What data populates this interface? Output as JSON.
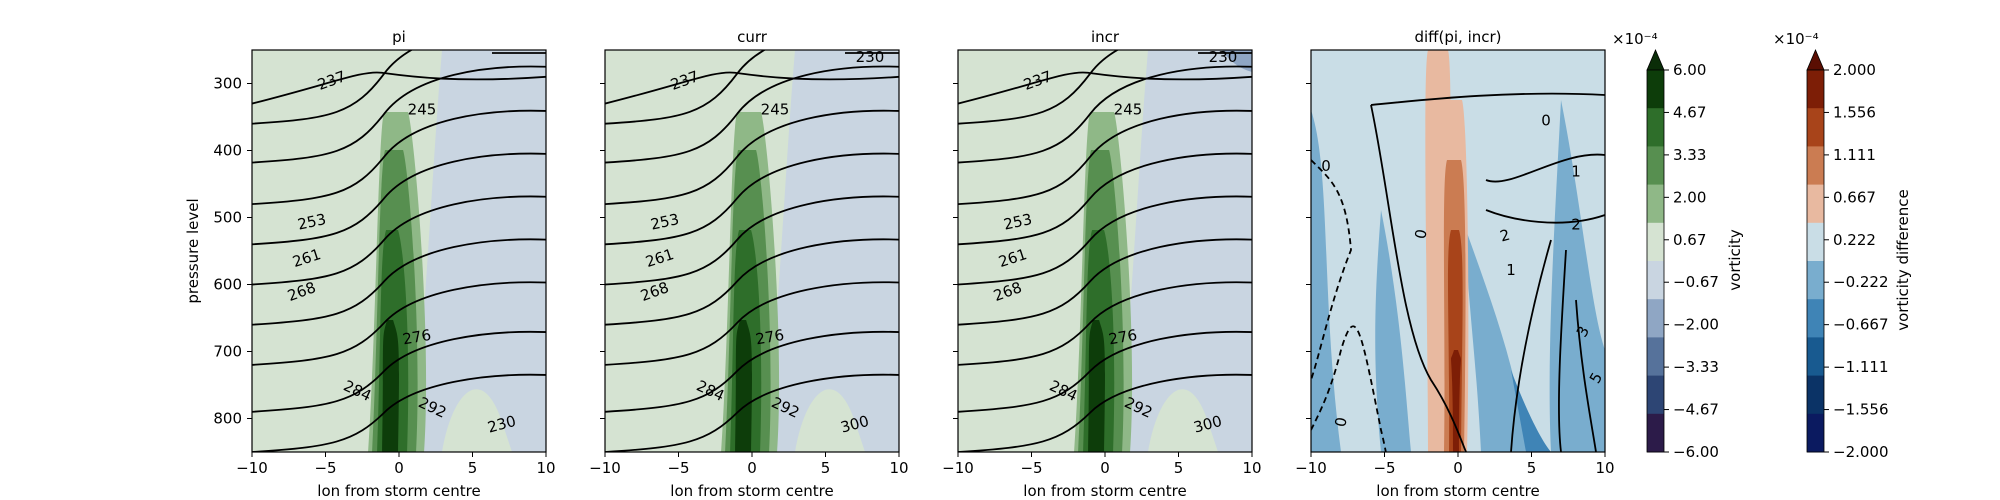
{
  "chart_data": [
    {
      "type": "contour",
      "title": "pi",
      "xlabel": "lon from storm centre",
      "ylabel": "pressure level",
      "x_ticks": [
        -10,
        -5,
        0,
        5,
        10
      ],
      "y_ticks": [
        300,
        400,
        500,
        600,
        700,
        800
      ],
      "xlim": [
        -10,
        10
      ],
      "ylim": [
        850,
        250
      ],
      "contour_labels": [
        "237",
        "245",
        "253",
        "261",
        "268",
        "276",
        "284",
        "292",
        "230"
      ]
    },
    {
      "type": "contour",
      "title": "curr",
      "xlabel": "lon from storm centre",
      "x_ticks": [
        -10,
        -5,
        0,
        5,
        10
      ],
      "xlim": [
        -10,
        10
      ],
      "ylim": [
        850,
        250
      ],
      "contour_labels": [
        "237",
        "245",
        "253",
        "261",
        "268",
        "276",
        "284",
        "292",
        "300",
        "230"
      ]
    },
    {
      "type": "contour",
      "title": "incr",
      "xlabel": "lon from storm centre",
      "x_ticks": [
        -10,
        -5,
        0,
        5,
        10
      ],
      "xlim": [
        -10,
        10
      ],
      "ylim": [
        850,
        250
      ],
      "contour_labels": [
        "237",
        "245",
        "253",
        "261",
        "268",
        "276",
        "284",
        "292",
        "300",
        "230"
      ]
    },
    {
      "type": "contour",
      "title": "diff(pi, incr)",
      "xlabel": "lon from storm centre",
      "x_ticks": [
        -10,
        -5,
        0,
        5,
        10
      ],
      "xlim": [
        -10,
        10
      ],
      "ylim": [
        850,
        250
      ],
      "contour_labels": [
        "0",
        "0",
        "0",
        "0",
        "1",
        "1",
        "2",
        "2",
        "3",
        "5"
      ]
    }
  ],
  "colorbars": [
    {
      "label": "vorticity",
      "multiplier": "×10⁻⁴",
      "ticks": [
        "6.00",
        "4.67",
        "3.33",
        "2.00",
        "0.67",
        "−0.67",
        "−2.00",
        "−3.33",
        "−4.67",
        "−6.00"
      ],
      "colors": [
        "#0d3d0a",
        "#2e6e2a",
        "#578f50",
        "#8fb887",
        "#d5e3d2",
        "#c9d5e1",
        "#8fa6c4",
        "#56729b",
        "#2d4574",
        "#2c1b49"
      ],
      "extend_color": "#0b2d08"
    },
    {
      "label": "vorticity difference",
      "multiplier": "×10⁻⁴",
      "ticks": [
        "2.000",
        "1.556",
        "1.111",
        "0.667",
        "0.222",
        "−0.222",
        "−0.667",
        "−1.111",
        "−1.556",
        "−2.000"
      ],
      "colors": [
        "#7d1e06",
        "#a8441a",
        "#cb7c52",
        "#e8b9a0",
        "#c9dde6",
        "#79adce",
        "#3f84b6",
        "#185a90",
        "#0b3366",
        "#0b1a60"
      ],
      "extend_color": "#5a0e02"
    }
  ]
}
